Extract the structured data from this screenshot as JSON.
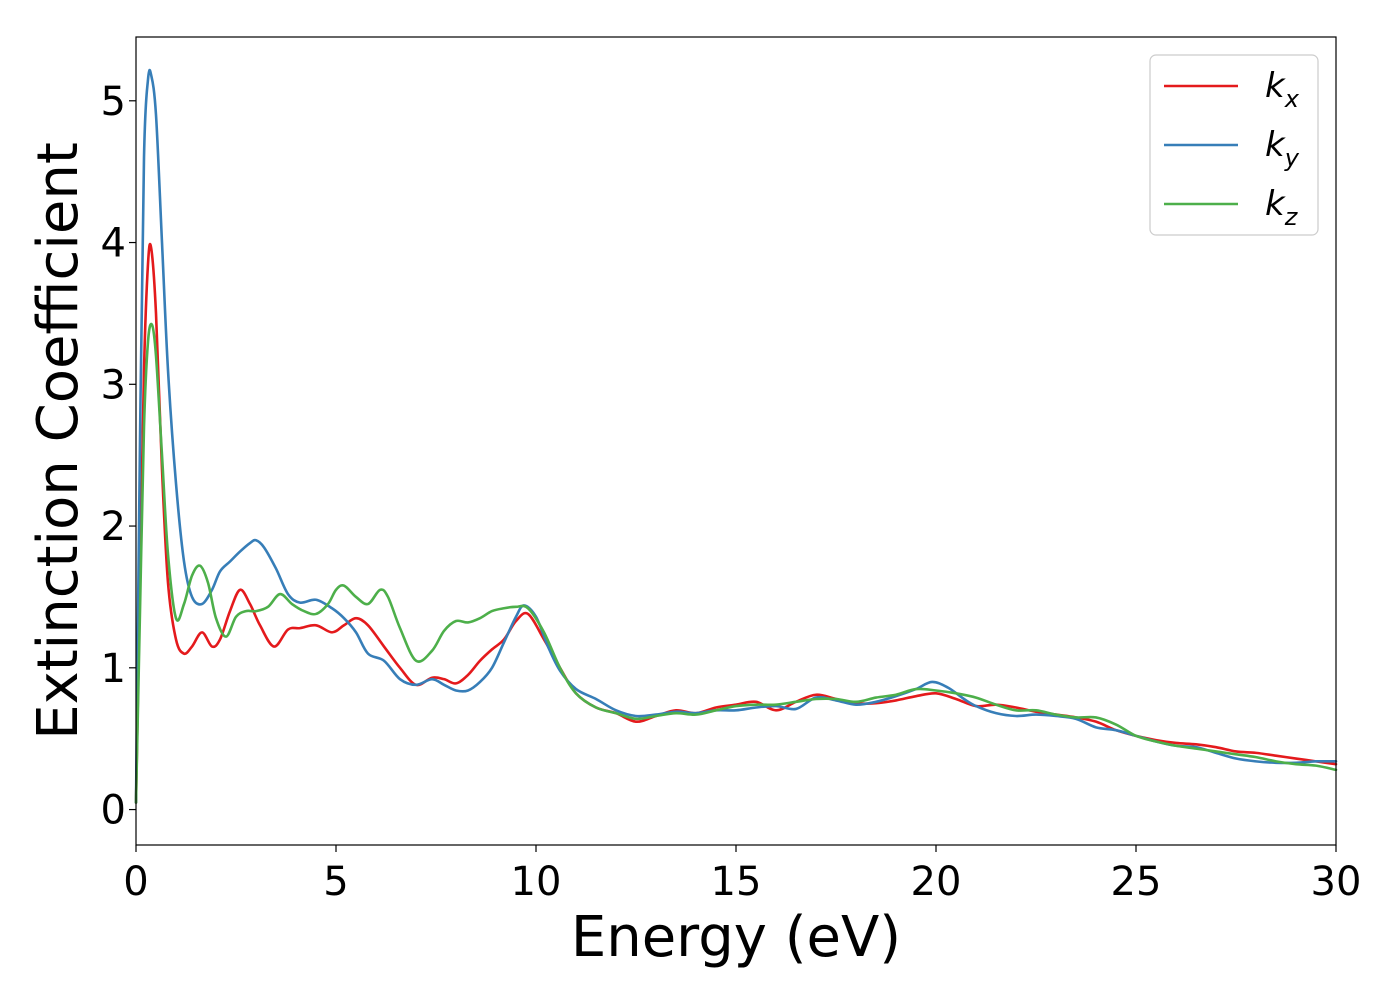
{
  "chart_data": {
    "type": "line",
    "xlabel": "Energy (eV)",
    "ylabel": "Extinction Coefficient",
    "xlim": [
      0,
      30
    ],
    "ylim": [
      -0.25,
      5.45
    ],
    "xticks": [
      0,
      5,
      10,
      15,
      20,
      25,
      30
    ],
    "yticks": [
      0,
      1,
      2,
      3,
      4,
      5
    ],
    "grid": false,
    "legend_position": "top-right",
    "series": [
      {
        "name": "k",
        "subscript": "x",
        "color": "#e41a1c",
        "x": [
          0,
          0.1,
          0.2,
          0.3,
          0.38,
          0.5,
          0.65,
          0.8,
          1.0,
          1.2,
          1.4,
          1.65,
          1.9,
          2.1,
          2.35,
          2.6,
          2.85,
          3.1,
          3.45,
          3.8,
          4.1,
          4.5,
          4.9,
          5.2,
          5.5,
          5.8,
          6.2,
          6.6,
          7.0,
          7.4,
          7.7,
          8.0,
          8.3,
          8.6,
          8.9,
          9.2,
          9.5,
          9.8,
          10.2,
          10.6,
          11.0,
          11.5,
          12.0,
          12.5,
          13.0,
          13.5,
          14.0,
          14.5,
          15.0,
          15.5,
          16.0,
          16.5,
          17.0,
          17.5,
          18.0,
          18.5,
          19.0,
          19.5,
          20.0,
          20.5,
          21.0,
          21.5,
          22.0,
          22.5,
          23.0,
          23.5,
          24.0,
          24.5,
          25.0,
          25.5,
          26.0,
          26.5,
          27.0,
          27.5,
          28.0,
          28.5,
          29.0,
          29.5,
          30.0
        ],
        "values": [
          0.05,
          1.6,
          3.1,
          3.85,
          3.96,
          3.5,
          2.4,
          1.6,
          1.2,
          1.1,
          1.15,
          1.25,
          1.15,
          1.2,
          1.4,
          1.55,
          1.45,
          1.3,
          1.15,
          1.27,
          1.28,
          1.3,
          1.25,
          1.3,
          1.35,
          1.3,
          1.15,
          1.0,
          0.88,
          0.93,
          0.92,
          0.89,
          0.95,
          1.05,
          1.13,
          1.2,
          1.33,
          1.38,
          1.2,
          1.0,
          0.82,
          0.72,
          0.68,
          0.62,
          0.66,
          0.7,
          0.68,
          0.72,
          0.74,
          0.76,
          0.7,
          0.76,
          0.81,
          0.78,
          0.75,
          0.75,
          0.77,
          0.8,
          0.82,
          0.78,
          0.73,
          0.74,
          0.72,
          0.69,
          0.67,
          0.65,
          0.62,
          0.56,
          0.52,
          0.49,
          0.47,
          0.46,
          0.44,
          0.41,
          0.4,
          0.38,
          0.36,
          0.34,
          0.32
        ]
      },
      {
        "name": "k",
        "subscript": "y",
        "color": "#377eb8",
        "x": [
          0,
          0.1,
          0.2,
          0.3,
          0.38,
          0.5,
          0.65,
          0.8,
          1.0,
          1.2,
          1.4,
          1.65,
          1.9,
          2.1,
          2.35,
          2.6,
          2.85,
          3.0,
          3.2,
          3.5,
          3.8,
          4.1,
          4.5,
          4.9,
          5.2,
          5.5,
          5.8,
          6.2,
          6.6,
          7.0,
          7.4,
          7.7,
          8.0,
          8.3,
          8.6,
          8.9,
          9.2,
          9.5,
          9.7,
          10.0,
          10.3,
          10.6,
          11.0,
          11.5,
          12.0,
          12.5,
          13.0,
          13.5,
          14.0,
          14.5,
          15.0,
          15.5,
          16.0,
          16.5,
          17.0,
          17.5,
          18.0,
          18.5,
          19.0,
          19.5,
          19.9,
          20.3,
          20.7,
          21.0,
          21.5,
          22.0,
          22.5,
          23.0,
          23.5,
          24.0,
          24.5,
          25.0,
          25.5,
          26.0,
          26.5,
          27.0,
          27.5,
          28.0,
          28.5,
          29.0,
          29.5,
          30.0
        ],
        "values": [
          0.05,
          2.6,
          4.6,
          5.15,
          5.18,
          4.9,
          4.0,
          3.1,
          2.3,
          1.75,
          1.5,
          1.45,
          1.55,
          1.68,
          1.75,
          1.82,
          1.88,
          1.9,
          1.85,
          1.7,
          1.52,
          1.46,
          1.48,
          1.42,
          1.35,
          1.25,
          1.1,
          1.05,
          0.92,
          0.88,
          0.92,
          0.88,
          0.84,
          0.84,
          0.9,
          1.0,
          1.18,
          1.36,
          1.44,
          1.36,
          1.15,
          0.98,
          0.85,
          0.78,
          0.7,
          0.66,
          0.67,
          0.69,
          0.68,
          0.7,
          0.7,
          0.72,
          0.73,
          0.71,
          0.79,
          0.77,
          0.74,
          0.76,
          0.8,
          0.85,
          0.9,
          0.86,
          0.78,
          0.73,
          0.68,
          0.66,
          0.67,
          0.66,
          0.64,
          0.58,
          0.56,
          0.52,
          0.48,
          0.45,
          0.44,
          0.4,
          0.36,
          0.34,
          0.33,
          0.33,
          0.34,
          0.34
        ]
      },
      {
        "name": "k",
        "subscript": "z",
        "color": "#4daf4a",
        "x": [
          0,
          0.1,
          0.2,
          0.3,
          0.4,
          0.5,
          0.65,
          0.8,
          1.0,
          1.2,
          1.4,
          1.6,
          1.8,
          2.0,
          2.25,
          2.5,
          2.75,
          3.0,
          3.3,
          3.6,
          3.9,
          4.2,
          4.5,
          4.8,
          5.0,
          5.2,
          5.5,
          5.8,
          6.1,
          6.3,
          6.6,
          7.0,
          7.4,
          7.7,
          8.0,
          8.3,
          8.6,
          8.9,
          9.2,
          9.5,
          9.8,
          10.2,
          10.6,
          11.0,
          11.5,
          12.0,
          12.5,
          13.0,
          13.5,
          14.0,
          14.5,
          15.0,
          15.5,
          16.0,
          16.5,
          17.0,
          17.5,
          18.0,
          18.5,
          19.0,
          19.5,
          20.0,
          20.5,
          21.0,
          21.5,
          22.0,
          22.5,
          23.0,
          23.5,
          24.0,
          24.5,
          25.0,
          25.5,
          26.0,
          26.5,
          27.0,
          27.5,
          28.0,
          28.5,
          29.0,
          29.5,
          30.0
        ],
        "values": [
          0.05,
          1.4,
          2.7,
          3.3,
          3.42,
          3.2,
          2.5,
          1.8,
          1.35,
          1.45,
          1.65,
          1.72,
          1.6,
          1.35,
          1.22,
          1.36,
          1.4,
          1.4,
          1.43,
          1.52,
          1.45,
          1.4,
          1.38,
          1.45,
          1.55,
          1.58,
          1.5,
          1.45,
          1.55,
          1.5,
          1.28,
          1.05,
          1.12,
          1.26,
          1.33,
          1.32,
          1.35,
          1.4,
          1.42,
          1.43,
          1.42,
          1.25,
          1.0,
          0.82,
          0.72,
          0.68,
          0.64,
          0.66,
          0.68,
          0.67,
          0.7,
          0.73,
          0.74,
          0.74,
          0.76,
          0.78,
          0.78,
          0.76,
          0.79,
          0.81,
          0.85,
          0.84,
          0.82,
          0.79,
          0.74,
          0.7,
          0.7,
          0.67,
          0.65,
          0.65,
          0.6,
          0.52,
          0.48,
          0.45,
          0.43,
          0.41,
          0.39,
          0.37,
          0.34,
          0.32,
          0.31,
          0.28
        ]
      }
    ]
  }
}
